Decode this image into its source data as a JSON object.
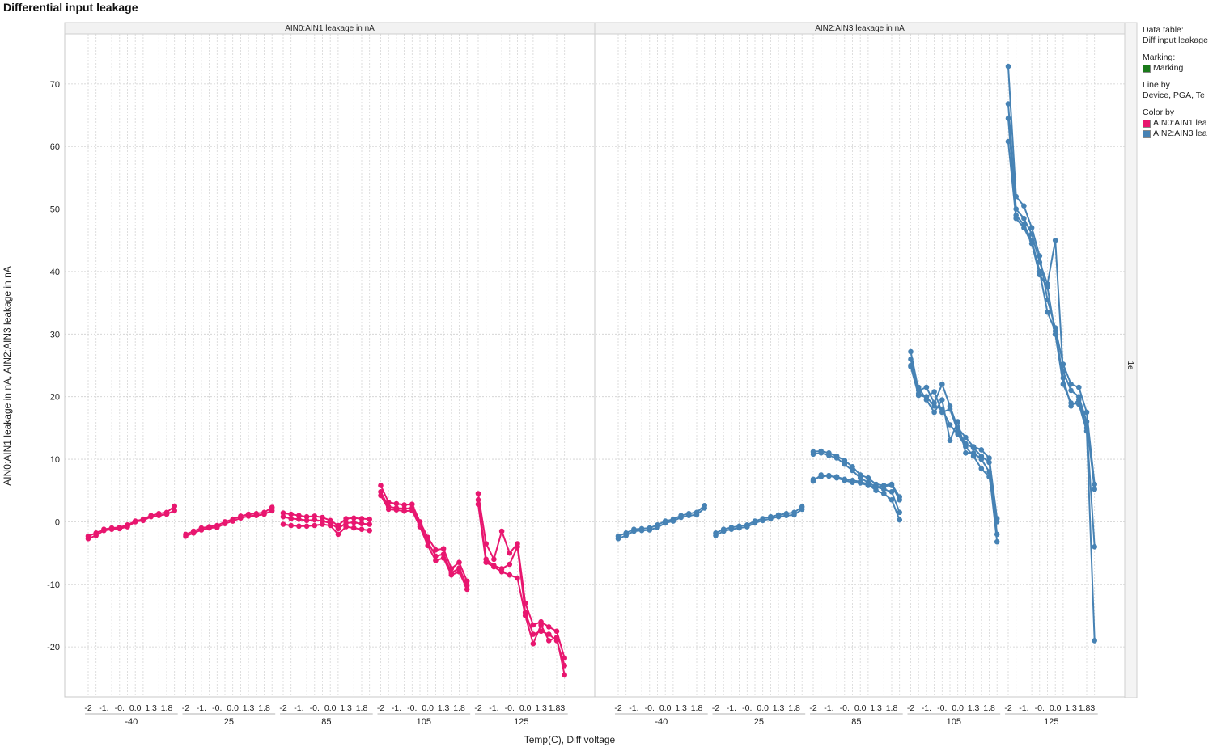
{
  "title": "Differential input leakage",
  "legend": {
    "data_table_label": "Data table:",
    "data_table_value": "Diff input leakage",
    "marking_label": "Marking:",
    "marking_item": "Marking",
    "marking_color": "#1a7a1a",
    "line_by_label": "Line by",
    "line_by_value": "Device, PGA, Te",
    "color_by_label": "Color by",
    "items": [
      {
        "label": "AIN0:AIN1 lea",
        "color": "#e8166f"
      },
      {
        "label": "AIN2:AIN3 lea",
        "color": "#4682b4"
      }
    ]
  },
  "side_label": "1e",
  "chart_data": {
    "type": "line",
    "ylabel": "AIN0:AIN1 leakage in nA, AIN2:AIN3 leakage in nA",
    "xlabel": "Temp(C), Diff voltage",
    "ylim": [
      -28,
      78
    ],
    "yticks": [
      -20,
      -10,
      0,
      10,
      20,
      30,
      40,
      50,
      60,
      70
    ],
    "grid": true,
    "temps": [
      "-40",
      "25",
      "85",
      "105",
      "125"
    ],
    "diff_tick_labels": [
      "-2",
      "-1.",
      "-0.",
      "0.0",
      "1.3",
      "1.8"
    ],
    "last_tick_label": "1.83",
    "panels": [
      {
        "title": "AIN0:AIN1 leakage in nA",
        "color": "#e8166f",
        "groups": [
          {
            "temp": "-40",
            "series": [
              [
                -2.7,
                -2.2,
                -1.4,
                -1.2,
                -1.1,
                -0.8,
                0.0,
                0.2,
                0.8,
                1.0,
                1.2,
                1.8
              ],
              [
                -2.3,
                -1.8,
                -1.2,
                -1.0,
                -0.9,
                -0.5,
                0.1,
                0.4,
                1.0,
                1.3,
                1.5,
                2.5
              ]
            ]
          },
          {
            "temp": "25",
            "series": [
              [
                -2.3,
                -1.8,
                -1.3,
                -1.0,
                -0.9,
                -0.3,
                0.1,
                0.6,
                0.9,
                1.0,
                1.2,
                1.8
              ],
              [
                -2.0,
                -1.5,
                -1.0,
                -0.8,
                -0.6,
                0.0,
                0.4,
                0.9,
                1.2,
                1.3,
                1.5,
                2.3
              ]
            ]
          },
          {
            "temp": "85",
            "series": [
              [
                1.4,
                1.2,
                1.0,
                0.8,
                0.9,
                0.7,
                0.2,
                -0.6,
                0.5,
                0.6,
                0.5,
                0.4
              ],
              [
                0.8,
                0.5,
                0.4,
                0.2,
                0.3,
                0.1,
                -0.2,
                -1.1,
                -0.2,
                -0.1,
                -0.3,
                -0.4
              ],
              [
                -0.4,
                -0.6,
                -0.7,
                -0.7,
                -0.6,
                -0.4,
                -0.6,
                -2.0,
                -0.8,
                -1.0,
                -1.2,
                -1.4
              ]
            ]
          },
          {
            "temp": "105",
            "series": [
              [
                5.8,
                3.1,
                2.9,
                2.7,
                2.8,
                0.0,
                -2.5,
                -4.5,
                -4.3,
                -7.5,
                -6.5,
                -9.5
              ],
              [
                4.8,
                2.4,
                2.2,
                2.1,
                2.2,
                -0.4,
                -3.2,
                -5.5,
                -5.2,
                -8.2,
                -7.4,
                -10.2
              ],
              [
                4.2,
                2.0,
                1.9,
                1.7,
                1.8,
                -0.8,
                -3.8,
                -6.2,
                -5.8,
                -8.5,
                -8.0,
                -10.8
              ]
            ]
          },
          {
            "temp": "125",
            "series": [
              [
                4.5,
                -3.5,
                -6.0,
                -1.5,
                -5.0,
                -3.5,
                -13.0,
                -16.5,
                -16.0,
                -16.8,
                -17.5,
                -21.8
              ],
              [
                3.5,
                -6.0,
                -7.0,
                -7.5,
                -6.8,
                -4.0,
                -14.5,
                -18.0,
                -17.5,
                -18.0,
                -19.0,
                -23.0
              ],
              [
                2.8,
                -6.5,
                -7.2,
                -8.0,
                -8.5,
                -9.0,
                -15.0,
                -19.5,
                -16.5,
                -19.0,
                -18.5,
                -24.5
              ]
            ]
          }
        ]
      },
      {
        "title": "AIN2:AIN3 leakage in nA",
        "color": "#4682b4",
        "groups": [
          {
            "temp": "-40",
            "series": [
              [
                -2.7,
                -2.2,
                -1.5,
                -1.4,
                -1.3,
                -0.9,
                -0.2,
                0.1,
                0.7,
                1.0,
                1.1,
                2.2
              ],
              [
                -2.3,
                -1.8,
                -1.2,
                -1.1,
                -1.0,
                -0.5,
                0.1,
                0.4,
                1.0,
                1.3,
                1.5,
                2.6
              ]
            ]
          },
          {
            "temp": "25",
            "series": [
              [
                -2.2,
                -1.5,
                -1.2,
                -1.0,
                -0.8,
                -0.2,
                0.2,
                0.5,
                0.8,
                1.0,
                1.1,
                2.0
              ],
              [
                -1.8,
                -1.2,
                -0.9,
                -0.7,
                -0.5,
                0.1,
                0.5,
                0.8,
                1.1,
                1.3,
                1.5,
                2.4
              ]
            ]
          },
          {
            "temp": "85",
            "series": [
              [
                11.2,
                11.3,
                11.0,
                10.5,
                9.8,
                8.8,
                7.5,
                7.0,
                6.0,
                5.8,
                6.0,
                4.0
              ],
              [
                10.8,
                11.0,
                10.6,
                10.2,
                9.2,
                8.2,
                7.0,
                6.3,
                5.6,
                5.2,
                4.8,
                1.5
              ],
              [
                6.5,
                7.5,
                7.3,
                7.2,
                6.8,
                6.6,
                6.4,
                6.0,
                5.0,
                4.5,
                3.5,
                0.3
              ],
              [
                6.8,
                7.2,
                7.4,
                7.0,
                6.6,
                6.3,
                6.2,
                5.8,
                5.5,
                5.7,
                5.8,
                3.5
              ]
            ]
          },
          {
            "temp": "105",
            "series": [
              [
                27.2,
                21.0,
                21.5,
                19.0,
                22.0,
                18.5,
                15.0,
                13.5,
                12.0,
                11.5,
                10.2,
                0.5
              ],
              [
                26.0,
                20.5,
                20.0,
                20.8,
                17.5,
                18.0,
                14.5,
                12.5,
                11.8,
                10.5,
                9.5,
                -2.0
              ],
              [
                25.0,
                21.5,
                19.5,
                17.5,
                19.5,
                13.0,
                16.0,
                11.0,
                11.0,
                10.0,
                8.0,
                -3.2
              ],
              [
                24.8,
                20.2,
                20.0,
                18.5,
                18.0,
                15.5,
                14.0,
                12.0,
                10.5,
                8.5,
                7.2,
                0.0
              ]
            ]
          },
          {
            "temp": "125",
            "series": [
              [
                72.8,
                52.0,
                50.5,
                47.0,
                42.5,
                35.5,
                31.0,
                25.2,
                22.0,
                21.5,
                17.5,
                6.0
              ],
              [
                66.8,
                50.0,
                48.5,
                46.0,
                41.5,
                38.0,
                45.0,
                24.0,
                21.0,
                20.0,
                16.0,
                5.2
              ],
              [
                64.5,
                49.0,
                47.5,
                45.0,
                40.0,
                33.5,
                30.5,
                23.0,
                18.5,
                19.5,
                15.0,
                -4.0
              ],
              [
                60.8,
                48.5,
                47.0,
                44.5,
                39.5,
                37.5,
                30.0,
                22.0,
                19.0,
                18.8,
                14.5,
                -19.0
              ]
            ]
          }
        ]
      }
    ]
  }
}
